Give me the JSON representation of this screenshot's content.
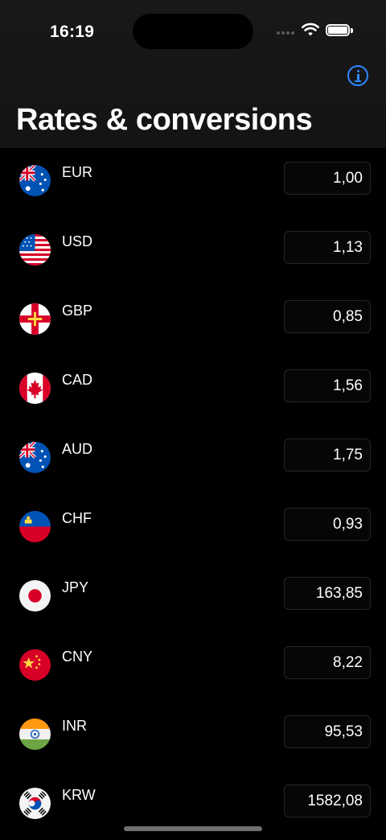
{
  "status_bar": {
    "time": "16:19"
  },
  "header": {
    "title": "Rates & conversions"
  },
  "rates": [
    {
      "code": "EUR",
      "value": "1,00",
      "flag": "australia-flag-icon"
    },
    {
      "code": "USD",
      "value": "1,13",
      "flag": "usa-flag-icon"
    },
    {
      "code": "GBP",
      "value": "0,85",
      "flag": "guernsey-flag-icon"
    },
    {
      "code": "CAD",
      "value": "1,56",
      "flag": "canada-flag-icon"
    },
    {
      "code": "AUD",
      "value": "1,75",
      "flag": "australia-flag-icon"
    },
    {
      "code": "CHF",
      "value": "0,93",
      "flag": "liechtenstein-flag-icon"
    },
    {
      "code": "JPY",
      "value": "163,85",
      "flag": "japan-flag-icon"
    },
    {
      "code": "CNY",
      "value": "8,22",
      "flag": "china-flag-icon"
    },
    {
      "code": "INR",
      "value": "95,53",
      "flag": "india-flag-icon"
    },
    {
      "code": "KRW",
      "value": "1582,08",
      "flag": "south-korea-flag-icon"
    }
  ],
  "colors": {
    "accent": "#2f87ff",
    "background": "#000000",
    "header": "#161616"
  }
}
